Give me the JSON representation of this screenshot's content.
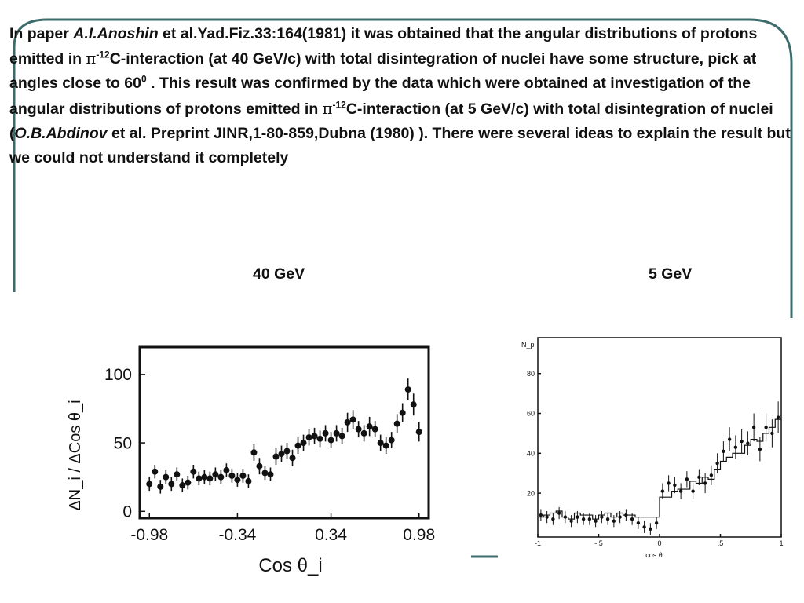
{
  "paragraph": {
    "t1": "In paper ",
    "author1": "A.I.Anoshin",
    "t2": " et al.Yad.Fiz.33:164(1981) it was obtained that the angular distributions of protons emitted in ",
    "pi1": "π",
    "sup1": "-12",
    "t3": "C-interaction (at 40 GeV/c) with total disintegration of nuclei have some structure, pick at  angles  close to 60",
    "sup_deg": "0",
    "t4": " . This result was confirmed by the data which were obtained at  investigation of the angular distributions of protons emitted in ",
    "pi2": "π",
    "sup2": "-12",
    "t5": "C-interaction (at 5 GeV/c) with total disintegration of nuclei (",
    "author2": "O.B.Abdinov",
    "t6": " et al. Preprint JINR,1-80-859,Dubna (1980) ). There were several ideas to explain the result but we could not understand  it completely"
  },
  "labels": {
    "left": "40 GeV",
    "right": "5 GeV"
  },
  "colors": {
    "frame": "#3d6b6b",
    "ink": "#111111"
  },
  "chart_data": [
    {
      "type": "scatter",
      "title": "40 GeV",
      "xlabel": "Cos θ_i",
      "ylabel": "ΔN_i / ΔCos θ_i",
      "xlim": [
        -1.05,
        1.05
      ],
      "ylim": [
        -5,
        120
      ],
      "xticks": [
        "-0.98",
        "-0.34",
        "0.34",
        "0.98"
      ],
      "xtick_values": [
        -0.98,
        -0.34,
        0.34,
        0.98
      ],
      "yticks": [
        "0",
        "50",
        "100"
      ],
      "ytick_values": [
        0,
        50,
        100
      ],
      "x": [
        -0.98,
        -0.94,
        -0.9,
        -0.86,
        -0.82,
        -0.78,
        -0.74,
        -0.7,
        -0.66,
        -0.62,
        -0.58,
        -0.54,
        -0.5,
        -0.46,
        -0.42,
        -0.38,
        -0.34,
        -0.3,
        -0.26,
        -0.22,
        -0.18,
        -0.14,
        -0.1,
        -0.06,
        -0.02,
        0.02,
        0.06,
        0.1,
        0.14,
        0.18,
        0.22,
        0.26,
        0.3,
        0.34,
        0.38,
        0.42,
        0.46,
        0.5,
        0.54,
        0.58,
        0.62,
        0.66,
        0.7,
        0.74,
        0.78,
        0.82,
        0.86,
        0.9,
        0.94,
        0.98
      ],
      "y": [
        20,
        29,
        18,
        25,
        20,
        27,
        19,
        21,
        29,
        24,
        25,
        24,
        27,
        25,
        30,
        26,
        23,
        26,
        22,
        43,
        33,
        28,
        27,
        40,
        42,
        44,
        39,
        48,
        50,
        54,
        55,
        53,
        57,
        52,
        57,
        55,
        65,
        67,
        60,
        57,
        62,
        60,
        50,
        48,
        52,
        64,
        72,
        89,
        78,
        58
      ],
      "errors": [
        5,
        5,
        5,
        5,
        5,
        5,
        5,
        5,
        5,
        5,
        5,
        5,
        5,
        5,
        5,
        5,
        5,
        5,
        5,
        6,
        6,
        5,
        5,
        6,
        6,
        6,
        6,
        6,
        6,
        6,
        6,
        6,
        6,
        6,
        6,
        6,
        7,
        7,
        6,
        6,
        7,
        6,
        6,
        6,
        6,
        7,
        7,
        8,
        8,
        7
      ]
    },
    {
      "type": "scatter",
      "title": "5 GeV",
      "xlabel": "cos θ",
      "ylabel": "N_p",
      "xlim": [
        -1,
        1
      ],
      "ylim": [
        -2,
        98
      ],
      "xticks": [
        "-1",
        "-.5",
        "0",
        ".5",
        "1"
      ],
      "xtick_values": [
        -1,
        -0.5,
        0,
        0.5,
        1
      ],
      "yticks": [
        "20",
        "40",
        "60",
        "80"
      ],
      "ytick_values": [
        20,
        40,
        60,
        80
      ],
      "x": [
        -0.975,
        -0.925,
        -0.875,
        -0.825,
        -0.775,
        -0.725,
        -0.675,
        -0.625,
        -0.575,
        -0.525,
        -0.475,
        -0.425,
        -0.375,
        -0.325,
        -0.275,
        -0.225,
        -0.175,
        -0.125,
        -0.075,
        -0.025,
        0.025,
        0.075,
        0.125,
        0.175,
        0.225,
        0.275,
        0.325,
        0.375,
        0.425,
        0.475,
        0.525,
        0.575,
        0.625,
        0.675,
        0.725,
        0.775,
        0.825,
        0.875,
        0.925,
        0.975
      ],
      "y": [
        9,
        8,
        7,
        10,
        8,
        6,
        8,
        7,
        7,
        6,
        8,
        7,
        6,
        8,
        9,
        7,
        5,
        3,
        2,
        5,
        21,
        25,
        24,
        21,
        27,
        21,
        28,
        25,
        29,
        35,
        41,
        47,
        43,
        46,
        45,
        53,
        42,
        53,
        50,
        58
      ],
      "errors": [
        3,
        3,
        3,
        3,
        3,
        3,
        3,
        3,
        3,
        3,
        3,
        3,
        3,
        3,
        3,
        3,
        3,
        3,
        3,
        3,
        4,
        4,
        4,
        4,
        4,
        4,
        4,
        5,
        5,
        5,
        5,
        6,
        6,
        6,
        6,
        7,
        6,
        7,
        7,
        8
      ],
      "histogram": [
        8,
        9,
        10,
        11,
        8,
        7,
        10,
        9,
        9,
        7,
        9,
        10,
        8,
        10,
        9,
        9,
        8,
        8,
        8,
        8,
        18,
        18,
        21,
        22,
        22,
        26,
        25,
        28,
        27,
        32,
        36,
        38,
        40,
        40,
        44,
        47,
        46,
        50,
        53,
        57
      ]
    }
  ]
}
